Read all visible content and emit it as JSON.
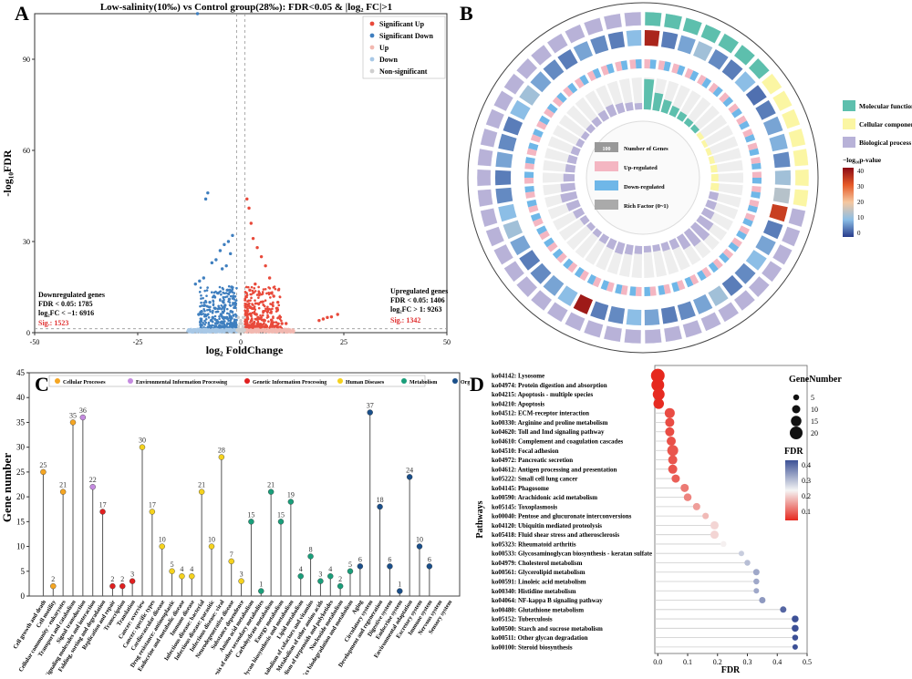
{
  "panel_a": {
    "letter": "A",
    "title": "Low-salinity(10‰) vs Control group(28‰): FDR<0.05 & |log₂ FC|>1",
    "xlabel": "log₂ FoldChange",
    "ylabel": "-log₁₀FDR",
    "legend": [
      "Significant Up",
      "Significant Down",
      "Up",
      "Down",
      "Non-significant"
    ],
    "down_text": [
      "Downregulated genes",
      "FDR < 0.05: 1785",
      "log₂FC < −1: 6916"
    ],
    "down_sig": "Sig.: 1523",
    "up_text": [
      "Upregulated genes",
      "FDR < 0.05: 1406",
      "log₂FC > 1: 9263"
    ],
    "up_sig": "Sig.: 1342"
  },
  "panel_b": {
    "letter": "B",
    "inner_legend": [
      "Number of Genes",
      "Up-regulated",
      "Down-regulated",
      "Rich Factor (0~1)"
    ],
    "inner_legend_number": "100",
    "category_legend": [
      "Molecular function",
      "Cellular component",
      "Biological process"
    ],
    "colorbar_title": "−log₁₀p-value",
    "colorbar_ticks": [
      "40",
      "30",
      "20",
      "10",
      "0"
    ]
  },
  "panel_c": {
    "letter": "C",
    "ylabel": "Gene number",
    "legend": [
      "Cellular Processes",
      "Environmental Information Processing",
      "Genetic Information Processing",
      "Human Diseases",
      "Metabolism",
      "Organismal Systems"
    ]
  },
  "panel_d": {
    "letter": "D",
    "ylabel": "Pathways",
    "xlabel": "FDR",
    "size_legend_title": "GeneNumber",
    "size_legend": [
      "5",
      "10",
      "15",
      "20"
    ],
    "fdr_legend_title": "FDR",
    "fdr_ticks": [
      "0.4",
      "0.3",
      "0.2",
      "0.1"
    ]
  },
  "chart_data": [
    {
      "type": "scatter",
      "panel": "A",
      "xlim": [
        -50,
        50
      ],
      "ylim": [
        0,
        105
      ],
      "xticks": [
        -50,
        -25,
        0,
        25,
        50
      ],
      "yticks": [
        0,
        30,
        60,
        90
      ],
      "thresholds": {
        "x": [
          -1,
          1
        ],
        "y": 1.3
      },
      "series": [
        {
          "name": "Significant Up",
          "color": "#e8493a",
          "x": [
            1.5,
            2,
            2.5,
            3,
            4,
            5,
            6,
            7,
            3.5,
            2.2,
            4.5,
            8,
            9,
            1.8,
            2.8,
            3.2,
            5.5,
            6.5,
            2.4,
            3.8,
            4.2,
            1.6,
            2.6,
            5.8,
            7.5,
            10,
            11,
            19,
            20,
            21,
            22,
            23.5,
            3,
            4,
            5,
            2.5,
            3.5,
            6,
            2,
            4.8,
            3.3,
            2.7
          ],
          "y": [
            44,
            41,
            36,
            31,
            28,
            25,
            22,
            18,
            16,
            14,
            13,
            12,
            10,
            9,
            8,
            8,
            7,
            7,
            6,
            6,
            5,
            5,
            4,
            4,
            4,
            3,
            3,
            4,
            4.5,
            5,
            5.2,
            6,
            3,
            2.5,
            2.5,
            2,
            2,
            2,
            1.8,
            1.8,
            1.5,
            1.5
          ]
        },
        {
          "name": "Significant Down",
          "color": "#3f7fbf",
          "x": [
            -10.5,
            -8,
            -8.5,
            -2,
            -3,
            -4,
            -5,
            -2.5,
            -6,
            -7,
            -3.5,
            -4.5,
            -9,
            -10,
            -11,
            -2.2,
            -3.2,
            -5.5,
            -6.5,
            -1.8,
            -2.8,
            -4.2,
            -7.5,
            -8.8,
            -3.8,
            -5.2,
            -6.2,
            -2.4,
            -9.5,
            -10.2,
            -4.8,
            -3.4,
            -2.6,
            -6.8,
            -5.8,
            -7.2,
            -1.6,
            -2.1,
            -3.9,
            -4.4
          ],
          "y": [
            105,
            46,
            44,
            32,
            30,
            29,
            27,
            26,
            24,
            23,
            22,
            21,
            18,
            17,
            16,
            15,
            14,
            13,
            12,
            12,
            11,
            10,
            10,
            9,
            9,
            8,
            8,
            7,
            7,
            6,
            6,
            5,
            5,
            5,
            4,
            4,
            3,
            3,
            2,
            2
          ]
        },
        {
          "name": "Up",
          "color": "#f2b8b0",
          "x": [
            1.2,
            1.5,
            2,
            2.5,
            3,
            3.5,
            4,
            5,
            6,
            7,
            8,
            9,
            10,
            12
          ],
          "y": [
            0.8,
            1,
            0.6,
            0.9,
            0.7,
            1.1,
            0.5,
            0.8,
            0.6,
            0.7,
            0.4,
            0.5,
            0.3,
            0.3
          ]
        },
        {
          "name": "Down",
          "color": "#a8c8e6",
          "x": [
            -1.2,
            -1.5,
            -2,
            -2.5,
            -3,
            -3.5,
            -4,
            -5,
            -6,
            -7,
            -8,
            -9,
            -10,
            -12
          ],
          "y": [
            0.8,
            1,
            0.6,
            0.9,
            0.7,
            1.1,
            0.5,
            0.8,
            0.6,
            0.7,
            0.4,
            0.5,
            0.3,
            0.3
          ]
        },
        {
          "name": "Non-significant",
          "color": "#cfcfcf",
          "x": [
            -0.8,
            -0.5,
            -0.2,
            0,
            0.2,
            0.5,
            0.8,
            -0.6,
            0.6,
            -0.3,
            0.3,
            -0.9,
            0.9
          ],
          "y": [
            1,
            2,
            3,
            4,
            3,
            2,
            1,
            5,
            5,
            0.5,
            0.5,
            0.8,
            0.8
          ]
        }
      ]
    },
    {
      "type": "other",
      "panel": "B",
      "description_only": false,
      "categories": [
        "Molecular function",
        "Cellular component",
        "Biological process"
      ],
      "colors": [
        "#5dbfad",
        "#fbf6a3",
        "#b8b2d8"
      ],
      "sector_category": [
        0,
        0,
        0,
        0,
        0,
        0,
        0,
        1,
        1,
        1,
        1,
        1,
        1,
        1,
        2,
        2,
        2,
        2,
        2,
        2,
        2,
        2,
        2,
        2,
        2,
        2,
        2,
        2,
        2,
        2,
        2,
        2,
        2,
        2,
        2,
        2,
        2,
        2,
        2,
        2,
        2,
        2,
        2,
        2,
        2,
        2,
        2,
        2,
        2,
        2
      ],
      "rich_factor": [
        0.95,
        0.55,
        0.4,
        0.3,
        0.25,
        0.2,
        0.18,
        0.15,
        0.12,
        0.14,
        0.16,
        0.2,
        0.22,
        0.25,
        0.28,
        0.3,
        0.35,
        0.5,
        0.6,
        0.55,
        0.45,
        0.3,
        0.25,
        0.2,
        0.2,
        0.25,
        0.3,
        0.35,
        0.3,
        0.25,
        0.2,
        0.18,
        0.22,
        0.3,
        0.4,
        0.5,
        0.45,
        0.35,
        0.3,
        0.28,
        0.25,
        0.2,
        0.18,
        0.2,
        0.25,
        0.3,
        0.35,
        0.3,
        0.25,
        0.2
      ],
      "neglog_p": [
        40,
        5,
        8,
        12,
        6,
        5,
        10,
        4,
        5,
        8,
        9,
        6,
        12,
        14,
        35,
        5,
        8,
        10,
        6,
        5,
        12,
        8,
        6,
        5,
        8,
        10,
        6,
        5,
        42,
        10,
        8,
        6,
        5,
        8,
        12,
        10,
        6,
        5,
        8,
        6,
        5,
        10,
        12,
        8,
        6,
        5,
        8,
        6,
        5,
        10
      ]
    },
    {
      "type": "bar",
      "panel": "C",
      "ylim": [
        0,
        45
      ],
      "yticks": [
        0,
        5,
        10,
        15,
        20,
        25,
        30,
        35,
        40,
        45
      ],
      "categories": [
        "Cell growth and death",
        "Cell motility",
        "Cellular community - eukaryotes",
        "Transport and catabolism",
        "Signal transduction",
        "Signaling molecules and interaction",
        "Folding, sorting and degradation",
        "Replication and repair",
        "Transcription",
        "Translation",
        "Cancer: overview",
        "Cancer: specific types",
        "Cardiovascular disease",
        "Drug resistance: antineoplastic",
        "Endocrine and metabolic disease",
        "Immune disease",
        "Infectious disease: bacterial",
        "Infectious disease: parasitic",
        "Infectious disease: viral",
        "Neurodegenerative disease",
        "Substance dependence",
        "Amino acid metabolism",
        "Biosynthesis of other secondary metabolites",
        "Carbohydrate metabolism",
        "Energy metabolism",
        "Glycan biosynthesis and metabolism",
        "Lipid metabolism",
        "Metabolism of cofactors and vitamins",
        "Metabolism of other amino acids",
        "Metabolism of terpenoids and polyketides",
        "Nucleotide metabolism",
        "Xenobiotics biodegradation and metabolism",
        "Aging",
        "Circulatory system",
        "Development and regeneration",
        "Digestive system",
        "Endocrine system",
        "Environmental adaptation",
        "Excretory system",
        "Immune system",
        "Nervous system",
        "Sensory system"
      ],
      "values": [
        25,
        2,
        21,
        35,
        36,
        22,
        17,
        2,
        2,
        3,
        30,
        17,
        10,
        5,
        4,
        4,
        21,
        10,
        28,
        7,
        3,
        15,
        1,
        21,
        15,
        19,
        4,
        8,
        3,
        4,
        2,
        5,
        6,
        37,
        18,
        6,
        1,
        24,
        10,
        6,
        0,
        0
      ],
      "groups": [
        0,
        0,
        0,
        0,
        1,
        1,
        2,
        2,
        2,
        2,
        3,
        3,
        3,
        3,
        3,
        3,
        3,
        3,
        3,
        3,
        3,
        4,
        4,
        4,
        4,
        4,
        4,
        4,
        4,
        4,
        4,
        4,
        5,
        5,
        5,
        5,
        5,
        5,
        5,
        5,
        5,
        5
      ],
      "group_colors": [
        "#f5a623",
        "#c58be0",
        "#e02020",
        "#f5d21e",
        "#1a9e7a",
        "#1a4f8a"
      ]
    },
    {
      "type": "scatter",
      "panel": "D",
      "xlim": [
        -0.01,
        0.5
      ],
      "xticks": [
        0.0,
        0.1,
        0.2,
        0.3,
        0.4,
        0.5
      ],
      "categories": [
        "ko04142: Lysosome",
        "ko04974: Protein digestion and absorption",
        "ko04215: Apoptosis - multiple species",
        "ko04210: Apoptosis",
        "ko04512: ECM-receptor interaction",
        "ko00330: Arginine and proline metabolism",
        "ko04620: Toll and Imd signaling pathway",
        "ko04610: Complement and coagulation cascades",
        "ko04510: Focal adhesion",
        "ko04972: Pancreatic secretion",
        "ko04612: Antigen processing and presentation",
        "ko05222: Small cell lung cancer",
        "ko04145: Phagosome",
        "ko00590: Arachidonic acid metabolism",
        "ko05145: Toxoplasmosis",
        "ko00040: Pentose and glucuronate interconversions",
        "ko04120: Ubiquitin mediated proteolysis",
        "ko05418: Fluid shear stress and atherosclerosis",
        "ko05323: Rheumatoid arthritis",
        "ko00533: Glycosaminoglycan biosynthesis - keratan sulfate",
        "ko04979: Cholesterol metabolism",
        "ko00561: Glycerolipid metabolism",
        "ko00591: Linoleic acid metabolism",
        "ko00340: Histidine metabolism",
        "ko04064: NF-kappa B signaling pathway",
        "ko00480: Glutathione metabolism",
        "ko05152: Tuberculosis",
        "ko00500: Starch and sucrose metabolism",
        "ko00511: Other glycan degradation",
        "ko00100: Steroid biosynthesis"
      ],
      "fdr": [
        0.0,
        0.0,
        0.003,
        0.003,
        0.04,
        0.04,
        0.04,
        0.045,
        0.05,
        0.05,
        0.05,
        0.06,
        0.09,
        0.1,
        0.13,
        0.16,
        0.19,
        0.19,
        0.22,
        0.28,
        0.3,
        0.33,
        0.33,
        0.33,
        0.35,
        0.42,
        0.46,
        0.46,
        0.46,
        0.46
      ],
      "gene_number": [
        22,
        20,
        18,
        15,
        14,
        12,
        12,
        12,
        16,
        12,
        12,
        10,
        10,
        9,
        8,
        6,
        10,
        10,
        5,
        4,
        5,
        6,
        5,
        4,
        6,
        6,
        7,
        7,
        5,
        4
      ]
    }
  ]
}
